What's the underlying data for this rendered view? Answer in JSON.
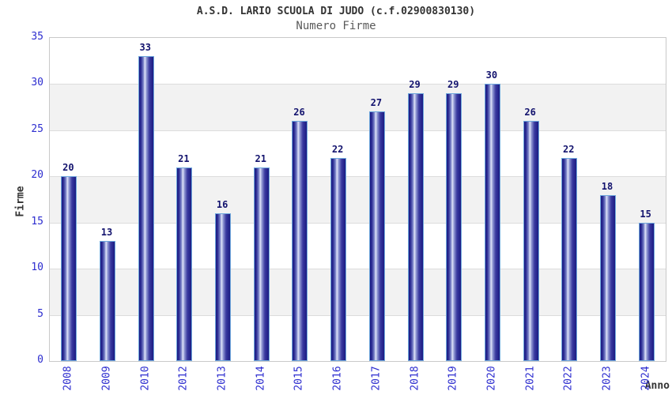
{
  "chart_data": {
    "type": "bar",
    "title": "A.S.D. LARIO SCUOLA DI JUDO (c.f.02900830130)",
    "subtitle": "Numero Firme",
    "xlabel": "Anno",
    "ylabel": "Firme",
    "categories": [
      "2008",
      "2009",
      "2010",
      "2012",
      "2013",
      "2014",
      "2015",
      "2016",
      "2017",
      "2018",
      "2019",
      "2020",
      "2021",
      "2022",
      "2023",
      "2024"
    ],
    "values": [
      20,
      13,
      33,
      21,
      16,
      21,
      26,
      22,
      27,
      29,
      29,
      30,
      26,
      22,
      18,
      15
    ],
    "ylim": [
      0,
      35
    ],
    "ytick_step": 5,
    "yticks": [
      0,
      5,
      10,
      15,
      20,
      25,
      30,
      35
    ],
    "legend": "none",
    "grid": "horizontal-bands-alternating"
  },
  "colors": {
    "bar_edge": "#1b1b82",
    "bar_highlight": "#dfe4f8",
    "bar_border": "#6fa8dc",
    "tick_label": "#2d2dcf",
    "value_label": "#13136e",
    "title": "#333333",
    "subtitle": "#5a5a5a",
    "band_gray": "#f2f2f2",
    "gridline": "#dcdcdc",
    "plot_border": "#c9c9c9",
    "background": "#ffffff"
  }
}
